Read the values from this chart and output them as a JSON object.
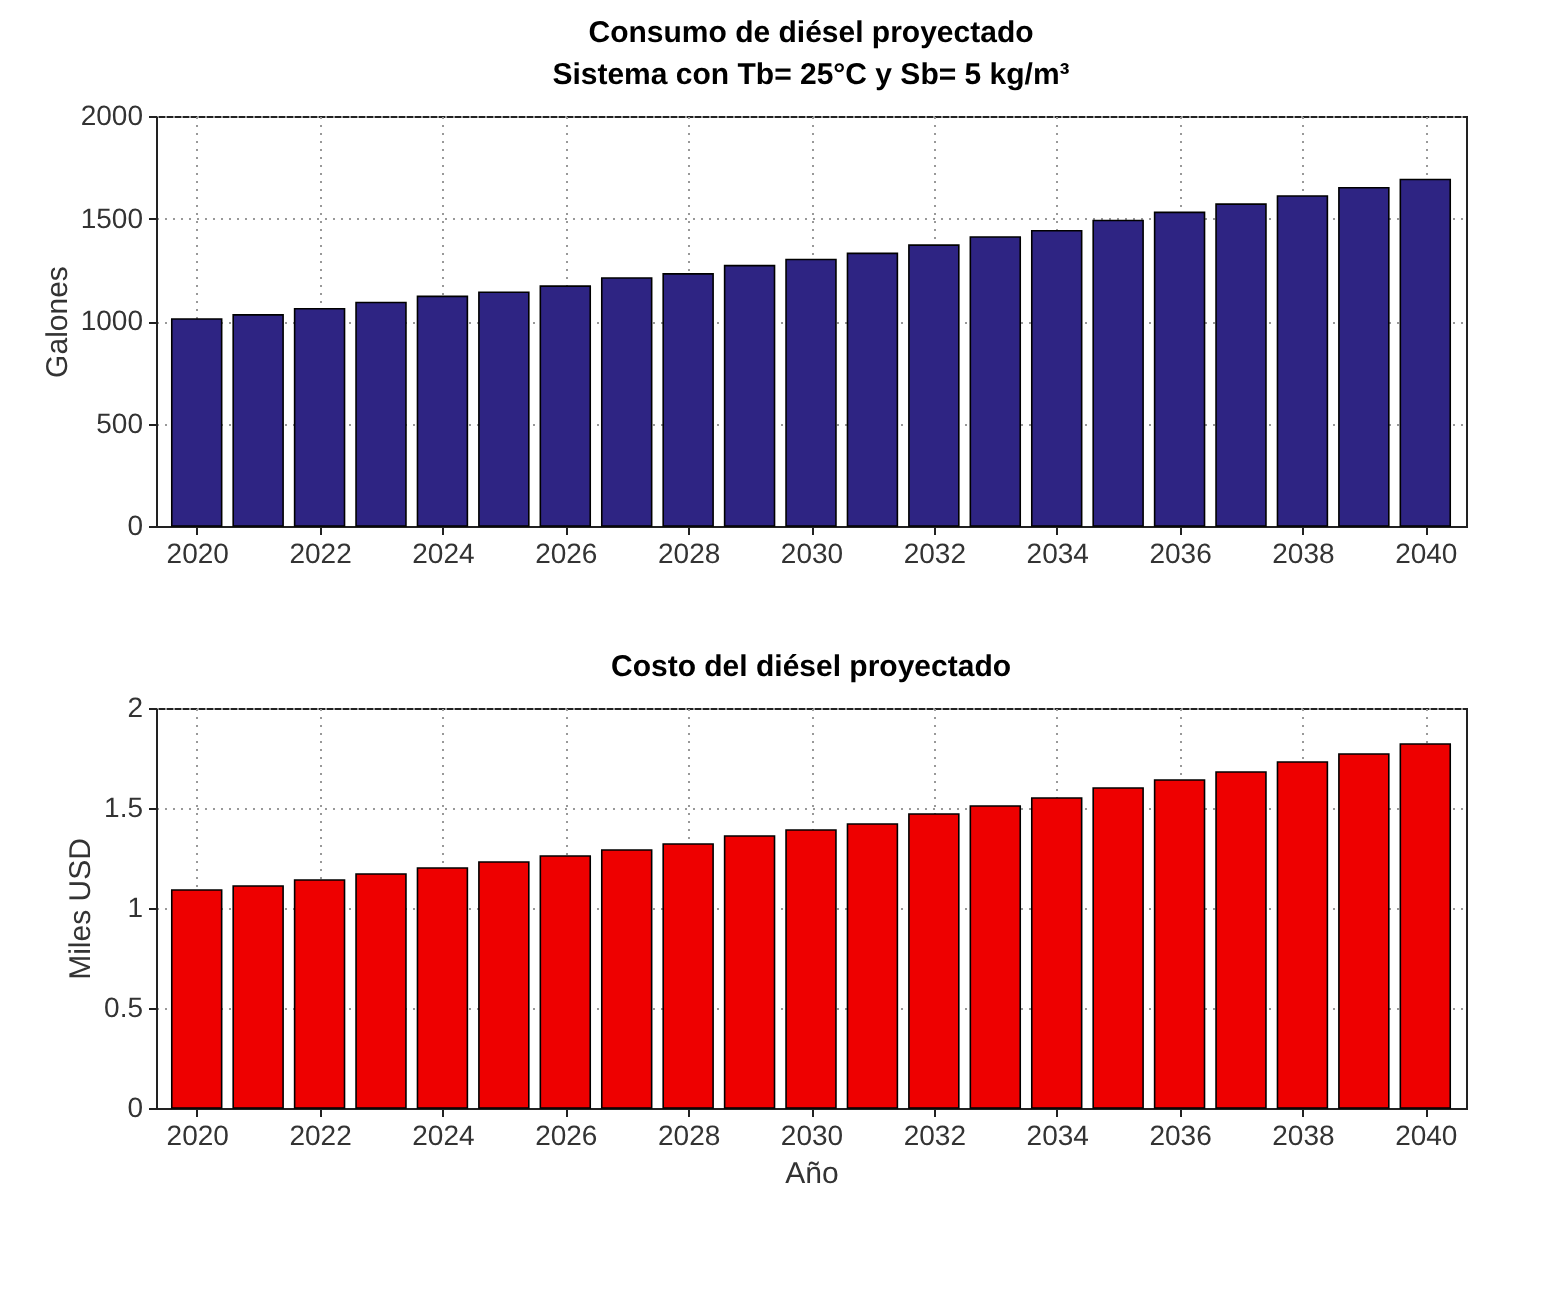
{
  "chart_data": [
    {
      "type": "bar",
      "title": "Consumo de diésel proyectado",
      "subtitle": "Sistema con Tb= 25°C y Sb= 5 kg/m³",
      "ylabel": "Galones",
      "x": [
        2020,
        2021,
        2022,
        2023,
        2024,
        2025,
        2026,
        2027,
        2028,
        2029,
        2030,
        2031,
        2032,
        2033,
        2034,
        2035,
        2036,
        2037,
        2038,
        2039,
        2040
      ],
      "values": [
        1010,
        1030,
        1060,
        1090,
        1120,
        1140,
        1170,
        1210,
        1230,
        1270,
        1300,
        1330,
        1370,
        1410,
        1440,
        1490,
        1530,
        1570,
        1610,
        1650,
        1690
      ],
      "color": "#2e2483",
      "xlim": [
        2019.5,
        2040.5
      ],
      "xticks": [
        2020,
        2022,
        2024,
        2026,
        2028,
        2030,
        2032,
        2034,
        2036,
        2038,
        2040
      ],
      "ylim": [
        0,
        2000
      ],
      "yticks": [
        0,
        500,
        1000,
        1500,
        2000
      ],
      "grid": true
    },
    {
      "type": "bar",
      "title": "Costo del diésel proyectado",
      "xlabel": "Año",
      "ylabel": "Miles USD",
      "x": [
        2020,
        2021,
        2022,
        2023,
        2024,
        2025,
        2026,
        2027,
        2028,
        2029,
        2030,
        2031,
        2032,
        2033,
        2034,
        2035,
        2036,
        2037,
        2038,
        2039,
        2040
      ],
      "values": [
        1.09,
        1.11,
        1.14,
        1.17,
        1.2,
        1.23,
        1.26,
        1.29,
        1.32,
        1.36,
        1.39,
        1.42,
        1.47,
        1.51,
        1.55,
        1.6,
        1.64,
        1.68,
        1.73,
        1.77,
        1.82
      ],
      "color": "#ee0000",
      "xlim": [
        2019.5,
        2040.5
      ],
      "xticks": [
        2020,
        2022,
        2024,
        2026,
        2028,
        2030,
        2032,
        2034,
        2036,
        2038,
        2040
      ],
      "ylim": [
        0,
        2
      ],
      "yticks": [
        0,
        0.5,
        1,
        1.5,
        2
      ],
      "grid": true
    }
  ]
}
